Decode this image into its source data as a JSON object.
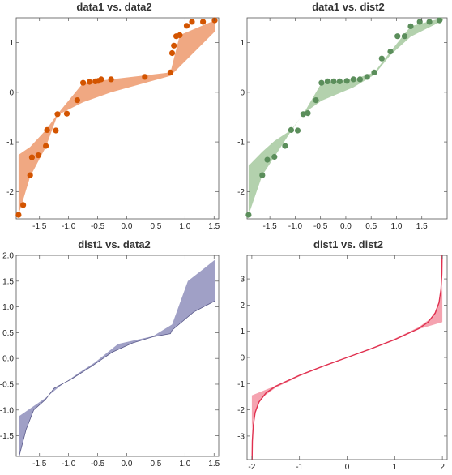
{
  "chart_data": [
    {
      "type": "scatter",
      "title": "data1 vs. data2",
      "xlim": [
        -1.9,
        1.58
      ],
      "ylim": [
        -2.55,
        1.5
      ],
      "xticks": [
        -1.5,
        -1.0,
        -0.5,
        0.0,
        0.5,
        1.0,
        1.5
      ],
      "xticklabels": [
        "-1.5",
        "-1.0",
        "-0.5",
        "0.0",
        "0.5",
        "1.0",
        "1.5"
      ],
      "yticks": [
        -2,
        -1,
        0,
        1
      ],
      "yticklabels": [
        "-2",
        "-1",
        "0",
        "1"
      ],
      "colors": {
        "points": "#d35400",
        "band": "#f0a882"
      },
      "points": [
        [
          -1.86,
          -2.47
        ],
        [
          -1.78,
          -2.27
        ],
        [
          -1.66,
          -1.67
        ],
        [
          -1.63,
          -1.31
        ],
        [
          -1.52,
          -1.27
        ],
        [
          -1.39,
          -1.08
        ],
        [
          -1.37,
          -0.76
        ],
        [
          -1.22,
          -0.77
        ],
        [
          -1.19,
          -0.44
        ],
        [
          -1.03,
          -0.43
        ],
        [
          -0.85,
          -0.16
        ],
        [
          -0.75,
          0.19
        ],
        [
          -0.64,
          0.21
        ],
        [
          -0.54,
          0.22
        ],
        [
          -0.49,
          0.23
        ],
        [
          -0.44,
          0.26
        ],
        [
          -0.27,
          0.26
        ],
        [
          0.31,
          0.31
        ],
        [
          0.75,
          0.4
        ],
        [
          0.78,
          0.79
        ],
        [
          0.81,
          0.94
        ],
        [
          0.85,
          1.13
        ],
        [
          0.91,
          1.15
        ],
        [
          1.03,
          1.34
        ],
        [
          1.12,
          1.42
        ],
        [
          1.31,
          1.42
        ],
        [
          1.51,
          1.45
        ]
      ],
      "band_upper": [
        [
          -1.86,
          -1.26
        ],
        [
          -1.66,
          -1.1
        ],
        [
          -1.39,
          -0.76
        ],
        [
          -1.19,
          -0.44
        ],
        [
          -0.75,
          0.19
        ],
        [
          -0.27,
          0.26
        ],
        [
          0.75,
          0.4
        ],
        [
          0.91,
          1.15
        ],
        [
          1.51,
          1.45
        ]
      ],
      "band_lower": [
        [
          1.51,
          1.22
        ],
        [
          0.75,
          0.33
        ],
        [
          -0.27,
          0.0
        ],
        [
          -0.75,
          -0.2
        ],
        [
          -1.19,
          -0.46
        ],
        [
          -1.39,
          -1.1
        ],
        [
          -1.66,
          -1.7
        ],
        [
          -1.86,
          -2.47
        ]
      ]
    },
    {
      "type": "scatter",
      "title": "data1 vs. dist2",
      "xlim": [
        -1.95,
        2.0
      ],
      "ylim": [
        -2.55,
        1.5
      ],
      "xticks": [
        -1.5,
        -1.0,
        -0.5,
        0.0,
        0.5,
        1.0,
        1.5
      ],
      "xticklabels": [
        "-1.5",
        "-1.0",
        "-0.5",
        "0.0",
        "0.5",
        "1.0",
        "1.5"
      ],
      "yticks": [
        -2,
        -1,
        0,
        1
      ],
      "yticklabels": [
        "-2",
        "-1",
        "0",
        "1"
      ],
      "colors": {
        "points": "#5b8e5b",
        "band": "#b3d1ad"
      },
      "points": [
        [
          -1.92,
          -2.47
        ],
        [
          -1.65,
          -1.67
        ],
        [
          -1.55,
          -1.36
        ],
        [
          -1.41,
          -1.3
        ],
        [
          -1.2,
          -1.08
        ],
        [
          -1.08,
          -0.76
        ],
        [
          -0.95,
          -0.77
        ],
        [
          -0.84,
          -0.44
        ],
        [
          -0.75,
          -0.42
        ],
        [
          -0.59,
          -0.16
        ],
        [
          -0.48,
          0.19
        ],
        [
          -0.36,
          0.22
        ],
        [
          -0.24,
          0.22
        ],
        [
          -0.12,
          0.22
        ],
        [
          0.02,
          0.23
        ],
        [
          0.15,
          0.26
        ],
        [
          0.28,
          0.26
        ],
        [
          0.42,
          0.31
        ],
        [
          0.56,
          0.4
        ],
        [
          0.71,
          0.68
        ],
        [
          0.88,
          0.82
        ],
        [
          1.02,
          1.13
        ],
        [
          1.16,
          1.13
        ],
        [
          1.28,
          1.33
        ],
        [
          1.46,
          1.42
        ],
        [
          1.65,
          1.42
        ],
        [
          1.85,
          1.45
        ]
      ],
      "band_upper": [
        [
          -1.92,
          -1.48
        ],
        [
          -1.65,
          -1.2
        ],
        [
          -1.41,
          -0.98
        ],
        [
          -1.08,
          -0.76
        ],
        [
          -0.84,
          -0.44
        ],
        [
          -0.48,
          0.19
        ],
        [
          0.15,
          0.26
        ],
        [
          0.56,
          0.4
        ],
        [
          0.88,
          0.82
        ],
        [
          1.28,
          1.33
        ],
        [
          1.92,
          1.5
        ]
      ],
      "band_lower": [
        [
          1.92,
          1.45
        ],
        [
          1.28,
          1.12
        ],
        [
          0.88,
          0.75
        ],
        [
          0.56,
          0.35
        ],
        [
          0.15,
          0.1
        ],
        [
          -0.48,
          -0.17
        ],
        [
          -0.84,
          -0.43
        ],
        [
          -1.08,
          -0.78
        ],
        [
          -1.41,
          -1.3
        ],
        [
          -1.65,
          -1.67
        ],
        [
          -1.92,
          -2.47
        ]
      ]
    },
    {
      "type": "area",
      "title": "dist1 vs. data2",
      "xlim": [
        -1.9,
        1.58
      ],
      "ylim": [
        -1.9,
        2.0
      ],
      "xticks": [
        -1.5,
        -1.0,
        -0.5,
        0.0,
        0.5,
        1.0,
        1.5
      ],
      "xticklabels": [
        "-1.5",
        "-1.0",
        "-0.5",
        "0.0",
        "0.5",
        "1.0",
        "1.5"
      ],
      "yticks": [
        -1.5,
        -1.0,
        -0.5,
        0.0,
        0.5,
        1.0,
        1.5,
        2.0
      ],
      "yticklabels": [
        "-1.5",
        "-1.0",
        "-0.5",
        "0.0",
        "0.5",
        "1.0",
        "1.5",
        "2.0"
      ],
      "colors": {
        "band": "#a0a0c6",
        "edge": "#5a5a8a"
      },
      "band_upper": [
        [
          -1.85,
          -1.12
        ],
        [
          -1.4,
          -0.77
        ],
        [
          -1.15,
          -0.54
        ],
        [
          -0.85,
          -0.3
        ],
        [
          -0.55,
          -0.08
        ],
        [
          -0.35,
          0.1
        ],
        [
          -0.15,
          0.28
        ],
        [
          0.45,
          0.43
        ],
        [
          0.78,
          0.66
        ],
        [
          1.05,
          1.5
        ],
        [
          1.3,
          1.72
        ],
        [
          1.52,
          1.92
        ]
      ],
      "band_lower": [
        [
          1.52,
          1.12
        ],
        [
          1.15,
          0.9
        ],
        [
          0.78,
          0.55
        ],
        [
          0.75,
          0.48
        ],
        [
          0.45,
          0.42
        ],
        [
          0.1,
          0.3
        ],
        [
          -0.25,
          0.12
        ],
        [
          -0.6,
          -0.15
        ],
        [
          -0.95,
          -0.4
        ],
        [
          -1.25,
          -0.58
        ],
        [
          -1.4,
          -0.8
        ],
        [
          -1.6,
          -1.0
        ],
        [
          -1.73,
          -1.38
        ],
        [
          -1.85,
          -1.9
        ]
      ]
    },
    {
      "type": "area",
      "title": "dist1 vs. dist2",
      "xlim": [
        -2.1,
        2.1
      ],
      "ylim": [
        -3.9,
        3.9
      ],
      "xticks": [
        -2,
        -1,
        0,
        1,
        2
      ],
      "xticklabels": [
        "-2",
        "-1",
        "0",
        "1",
        "2"
      ],
      "yticks": [
        -3,
        -2,
        -1,
        0,
        1,
        2,
        3
      ],
      "yticklabels": [
        "-3",
        "-2",
        "-1",
        "0",
        "1",
        "2",
        "3"
      ],
      "colors": {
        "band": "#f5a3b0",
        "edge": "#e0304f"
      },
      "band_upper": [
        [
          -2.0,
          -1.45
        ],
        [
          -1.5,
          -1.08
        ],
        [
          -1.0,
          -0.7
        ],
        [
          -0.5,
          -0.35
        ],
        [
          0.0,
          0.0
        ],
        [
          0.5,
          0.35
        ],
        [
          1.0,
          0.72
        ],
        [
          1.5,
          1.15
        ],
        [
          1.8,
          1.55
        ],
        [
          1.95,
          2.2
        ],
        [
          2.0,
          2.7
        ]
      ],
      "band_lower": [
        [
          2.0,
          1.35
        ],
        [
          1.5,
          1.08
        ],
        [
          1.0,
          0.7
        ],
        [
          0.5,
          0.35
        ],
        [
          0.0,
          0.0
        ],
        [
          -0.5,
          -0.35
        ],
        [
          -1.0,
          -0.72
        ],
        [
          -1.5,
          -1.15
        ],
        [
          -1.8,
          -1.55
        ],
        [
          -1.95,
          -2.2
        ],
        [
          -2.0,
          -2.7
        ]
      ],
      "curve": [
        [
          -1.995,
          -3.9
        ],
        [
          -1.99,
          -3.2
        ],
        [
          -1.97,
          -2.6
        ],
        [
          -1.93,
          -2.1
        ],
        [
          -1.85,
          -1.7
        ],
        [
          -1.7,
          -1.35
        ],
        [
          -1.5,
          -1.1
        ],
        [
          -1.0,
          -0.68
        ],
        [
          -0.5,
          -0.33
        ],
        [
          0.0,
          0.0
        ],
        [
          0.5,
          0.33
        ],
        [
          1.0,
          0.68
        ],
        [
          1.5,
          1.1
        ],
        [
          1.7,
          1.35
        ],
        [
          1.85,
          1.7
        ],
        [
          1.93,
          2.1
        ],
        [
          1.97,
          2.6
        ],
        [
          1.99,
          3.2
        ],
        [
          1.995,
          3.9
        ]
      ]
    }
  ]
}
